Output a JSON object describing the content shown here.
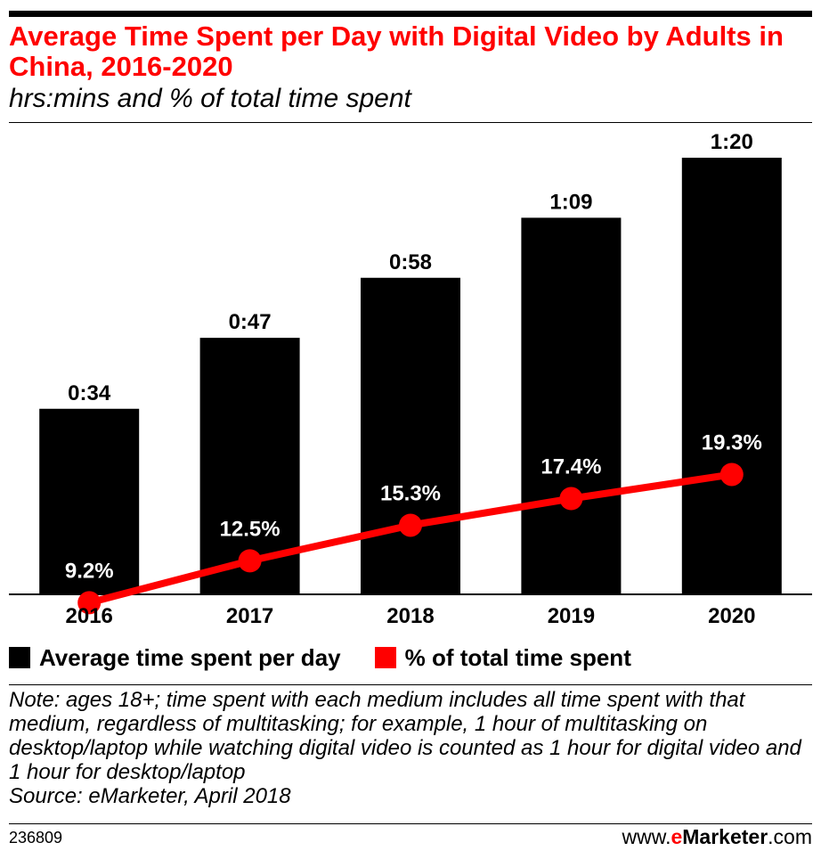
{
  "chart_data": {
    "type": "bar",
    "title": "Average Time Spent per Day with Digital Video by Adults in China, 2016-2020",
    "subtitle": "hrs:mins and % of total time spent",
    "categories": [
      "2016",
      "2017",
      "2018",
      "2019",
      "2020"
    ],
    "series": [
      {
        "name": "Average time spent per day",
        "type": "bar",
        "color": "#000000",
        "values": [
          34,
          47,
          58,
          69,
          80
        ],
        "labels": [
          "0:34",
          "0:47",
          "0:58",
          "1:09",
          "1:20"
        ]
      },
      {
        "name": "% of total time spent",
        "type": "line",
        "color": "#ff0000",
        "values": [
          9.2,
          12.5,
          15.3,
          17.4,
          19.3
        ],
        "labels": [
          "9.2%",
          "12.5%",
          "15.3%",
          "17.4%",
          "19.3%"
        ]
      }
    ],
    "xlabel": "",
    "ylabel": "",
    "grid": false,
    "legend_position": "bottom-left"
  },
  "legend": [
    {
      "label": "Average time spent per day",
      "color": "#000000"
    },
    {
      "label": "% of total time spent",
      "color": "#ff0000"
    }
  ],
  "note": "Note: ages 18+; time spent with each medium includes all time spent with that medium, regardless of multitasking; for example, 1 hour of multitasking on desktop/laptop while watching digital video is counted as 1 hour for digital video and 1 hour for desktop/laptop",
  "source": "Source: eMarketer, April 2018",
  "chart_id": "236809",
  "brand": {
    "prefix": "www.",
    "e": "e",
    "name": "Marketer",
    "suffix": ".com"
  }
}
